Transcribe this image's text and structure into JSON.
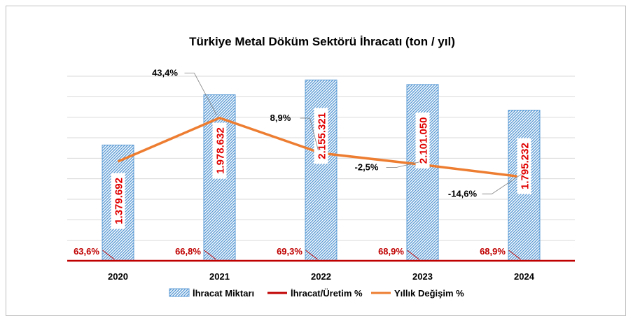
{
  "chart_data": {
    "type": "bar",
    "title": "Türkiye Metal Döküm Sektörü İhracatı (ton / yıl)",
    "xlabel": "",
    "ylabel": "",
    "categories": [
      "2020",
      "2021",
      "2022",
      "2023",
      "2024"
    ],
    "ylim": [
      0,
      2200000
    ],
    "grid": true,
    "legend_position": "bottom",
    "series": [
      {
        "name": "İhracat Miktarı",
        "kind": "bar",
        "values": [
          1379692,
          1978632,
          2155321,
          2101050,
          1795232
        ],
        "labels": [
          "1.379.692",
          "1.978.632",
          "2.155.321",
          "2.101.050",
          "1.795.232"
        ],
        "color": "#5b9bd5"
      },
      {
        "name": "İhracat/Üretim %",
        "kind": "line",
        "values": [
          63.6,
          66.8,
          69.3,
          68.9,
          68.9
        ],
        "labels": [
          "63,6%",
          "66,8%",
          "69,3%",
          "68,9%",
          "68,9%"
        ],
        "color": "#c00000"
      },
      {
        "name": "Yıllık Değişim %",
        "kind": "line",
        "values": [
          null,
          43.4,
          8.9,
          -2.5,
          -14.6
        ],
        "labels": [
          "",
          "43,4%",
          "8,9%",
          "-2,5%",
          "-14,6%"
        ],
        "color": "#ed7d31"
      }
    ]
  }
}
